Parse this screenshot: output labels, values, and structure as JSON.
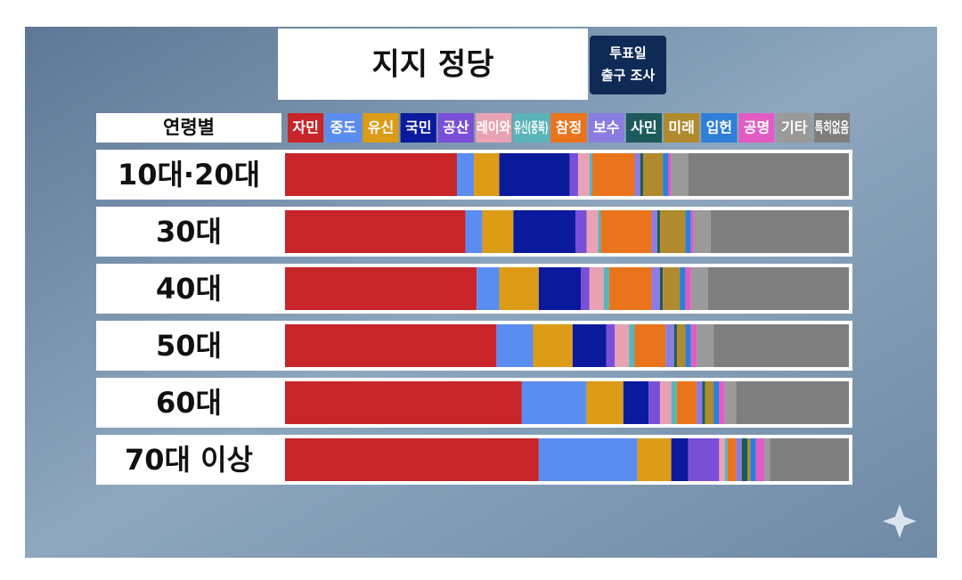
{
  "chart_data": {
    "type": "stacked-bar-horizontal",
    "title": "지지 정당",
    "badge": [
      "투표일",
      "출구 조사"
    ],
    "category_header": "연령별",
    "categories": [
      "10대·20대",
      "30대",
      "40대",
      "50대",
      "60대",
      "70대 이상"
    ],
    "xlim": [
      0,
      100
    ],
    "series": [
      {
        "name": "자민",
        "color": "#c8252a",
        "values": [
          30.5,
          32,
          34,
          37.5,
          42,
          45
        ]
      },
      {
        "name": "중도",
        "color": "#5b8cf0",
        "values": [
          3,
          3,
          4,
          6.5,
          11.5,
          17.5
        ]
      },
      {
        "name": "유신",
        "color": "#dc9c18",
        "values": [
          4.5,
          5.5,
          7,
          7,
          6.5,
          6
        ]
      },
      {
        "name": "국민",
        "color": "#0b1a9c",
        "values": [
          12.5,
          11,
          7.5,
          6,
          4.5,
          3
        ]
      },
      {
        "name": "공산",
        "color": "#7a4fd8",
        "values": [
          1.5,
          2,
          1.5,
          1.5,
          2,
          5.5
        ]
      },
      {
        "name": "레이와",
        "color": "#e8a2b4",
        "values": [
          2,
          2,
          2.5,
          2.5,
          2,
          1
        ]
      },
      {
        "name": "유신(중복)",
        "color": "#5bb4b8",
        "values": [
          0.5,
          0.5,
          1,
          1,
          1,
          0.5
        ]
      },
      {
        "name": "참정",
        "color": "#ea741c",
        "values": [
          7.5,
          9,
          7.5,
          5.5,
          3.5,
          1.5
        ]
      },
      {
        "name": "보수",
        "color": "#8a7ce0",
        "values": [
          1,
          1,
          1.5,
          1.5,
          1,
          1
        ]
      },
      {
        "name": "사민",
        "color": "#1c5a5c",
        "values": [
          0.5,
          0.5,
          0.5,
          0.5,
          0.5,
          1
        ]
      },
      {
        "name": "미래",
        "color": "#b08a2c",
        "values": [
          3.5,
          4.5,
          3,
          1.5,
          1.5,
          0.5
        ]
      },
      {
        "name": "입헌",
        "color": "#2f7ed8",
        "values": [
          1,
          1,
          1,
          1,
          1,
          1
        ]
      },
      {
        "name": "공명",
        "color": "#e25cc4",
        "values": [
          0.5,
          0.5,
          1,
          1,
          1,
          1.5
        ]
      },
      {
        "name": "기타",
        "color": "#9a9a9a",
        "values": [
          3,
          3,
          3,
          3,
          2,
          1
        ]
      },
      {
        "name": "특히없음",
        "color": "#7e7e7e",
        "values": [
          28.5,
          24.5,
          25,
          24,
          20,
          14
        ]
      }
    ]
  }
}
